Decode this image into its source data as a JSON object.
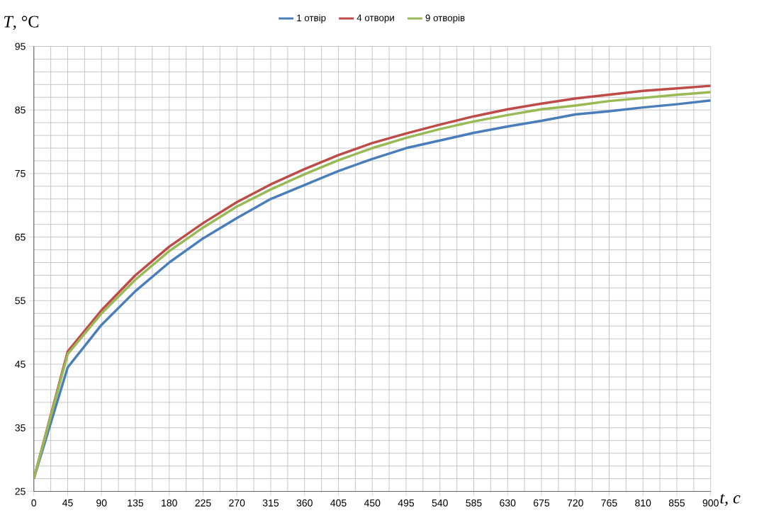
{
  "chart_data": {
    "type": "line",
    "xlabel": "t, с",
    "ylabel": "*T*, °C",
    "x": [
      0,
      45,
      90,
      135,
      180,
      225,
      270,
      315,
      360,
      405,
      450,
      495,
      540,
      585,
      630,
      675,
      720,
      765,
      810,
      855,
      900
    ],
    "series": [
      {
        "name": "1 отвір",
        "color": "#4a7ebb",
        "values": [
          27,
          44.5,
          51.2,
          56.5,
          61,
          64.8,
          68,
          71,
          73.2,
          75.4,
          77.3,
          79,
          80.2,
          81.4,
          82.4,
          83.3,
          84.3,
          84.8,
          85.4,
          85.9,
          86.5
        ]
      },
      {
        "name": "4 отвори",
        "color": "#be4b48",
        "values": [
          27,
          47,
          53.5,
          59,
          63.5,
          67.2,
          70.5,
          73.3,
          75.7,
          77.9,
          79.8,
          81.3,
          82.7,
          84,
          85.1,
          86,
          86.8,
          87.4,
          88,
          88.4,
          88.8
        ]
      },
      {
        "name": "9 отворів",
        "color": "#98b954",
        "values": [
          27,
          46.6,
          53,
          58.3,
          62.8,
          66.5,
          69.8,
          72.5,
          74.9,
          77.1,
          79,
          80.6,
          82,
          83.2,
          84.2,
          85.1,
          85.7,
          86.4,
          86.9,
          87.4,
          87.8
        ]
      }
    ],
    "xlim": [
      0,
      900
    ],
    "xticks": [
      0,
      45,
      90,
      135,
      180,
      225,
      270,
      315,
      360,
      405,
      450,
      495,
      540,
      585,
      630,
      675,
      720,
      765,
      810,
      855,
      900
    ],
    "ylim": [
      25,
      95
    ],
    "yticks": [
      25,
      35,
      45,
      55,
      65,
      75,
      85,
      95
    ],
    "grid": true,
    "legend": "top",
    "marker": "none",
    "line_style": "solid"
  }
}
